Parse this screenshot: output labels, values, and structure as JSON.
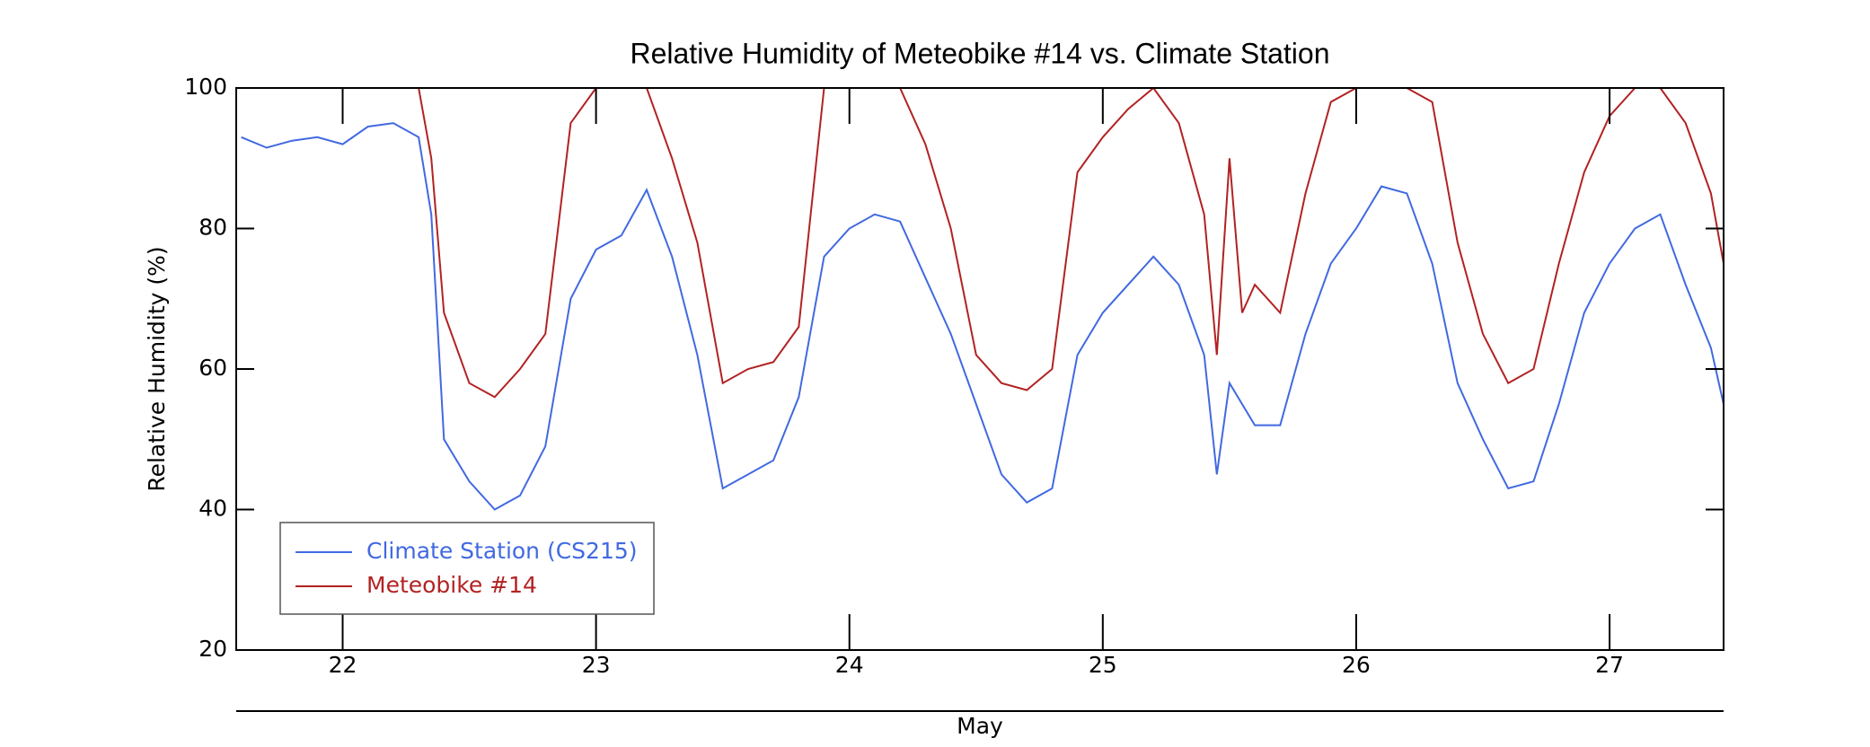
{
  "chart_data": {
    "type": "line",
    "title": "Relative Humidity of Meteobike #14 vs. Climate Station",
    "xlabel": "May",
    "ylabel": "Relative Humidity (%)",
    "xlim": [
      21.58,
      27.45
    ],
    "xticks": [
      22,
      23,
      24,
      25,
      26,
      27
    ],
    "ylim": [
      20,
      100
    ],
    "yticks": [
      20,
      40,
      60,
      80,
      100
    ],
    "legend": "lower left",
    "series": [
      {
        "name": "Climate Station (CS215)",
        "color": "#4169e1",
        "x": [
          21.6,
          21.7,
          21.8,
          21.9,
          22.0,
          22.1,
          22.2,
          22.3,
          22.35,
          22.4,
          22.5,
          22.6,
          22.7,
          22.8,
          22.9,
          23.0,
          23.1,
          23.2,
          23.3,
          23.4,
          23.5,
          23.6,
          23.7,
          23.8,
          23.9,
          24.0,
          24.1,
          24.2,
          24.3,
          24.4,
          24.5,
          24.6,
          24.7,
          24.8,
          24.9,
          25.0,
          25.1,
          25.2,
          25.3,
          25.4,
          25.45,
          25.5,
          25.6,
          25.7,
          25.8,
          25.9,
          26.0,
          26.1,
          26.2,
          26.3,
          26.4,
          26.5,
          26.6,
          26.7,
          26.8,
          26.9,
          27.0,
          27.1,
          27.2,
          27.3,
          27.4,
          27.45
        ],
        "values": [
          93,
          91.5,
          92.5,
          93,
          92,
          94.5,
          95,
          93,
          82,
          50,
          44,
          40,
          42,
          49,
          70,
          77,
          79,
          85.5,
          76,
          62,
          43,
          45,
          47,
          56,
          76,
          80,
          82,
          81,
          73,
          65,
          55,
          45,
          41,
          43,
          62,
          68,
          72,
          76,
          72,
          62,
          45,
          58,
          52,
          52,
          65,
          75,
          80,
          86,
          85,
          75,
          58,
          50,
          43,
          44,
          55,
          68,
          75,
          80,
          82,
          72,
          63,
          55
        ]
      },
      {
        "name": "Meteobike #14",
        "color": "#b22222",
        "x": [
          21.6,
          22.0,
          22.3,
          22.35,
          22.4,
          22.5,
          22.6,
          22.7,
          22.8,
          22.9,
          23.0,
          23.1,
          23.2,
          23.3,
          23.4,
          23.5,
          23.6,
          23.7,
          23.8,
          23.9,
          24.0,
          24.1,
          24.2,
          24.3,
          24.4,
          24.5,
          24.6,
          24.7,
          24.8,
          24.9,
          25.0,
          25.1,
          25.2,
          25.3,
          25.4,
          25.45,
          25.5,
          25.55,
          25.6,
          25.7,
          25.8,
          25.9,
          26.0,
          26.1,
          26.2,
          26.3,
          26.4,
          26.5,
          26.6,
          26.7,
          26.8,
          26.9,
          27.0,
          27.1,
          27.2,
          27.3,
          27.4,
          27.45
        ],
        "values": [
          100,
          100,
          100,
          90,
          68,
          58,
          56,
          60,
          65,
          95,
          100,
          100,
          100,
          90,
          78,
          58,
          60,
          61,
          66,
          100,
          100,
          100,
          100,
          92,
          80,
          62,
          58,
          57,
          60,
          88,
          93,
          97,
          100,
          95,
          82,
          62,
          90,
          68,
          72,
          68,
          85,
          98,
          100,
          100,
          100,
          98,
          78,
          65,
          58,
          60,
          75,
          88,
          96,
          100,
          100,
          95,
          85,
          75
        ]
      }
    ]
  }
}
